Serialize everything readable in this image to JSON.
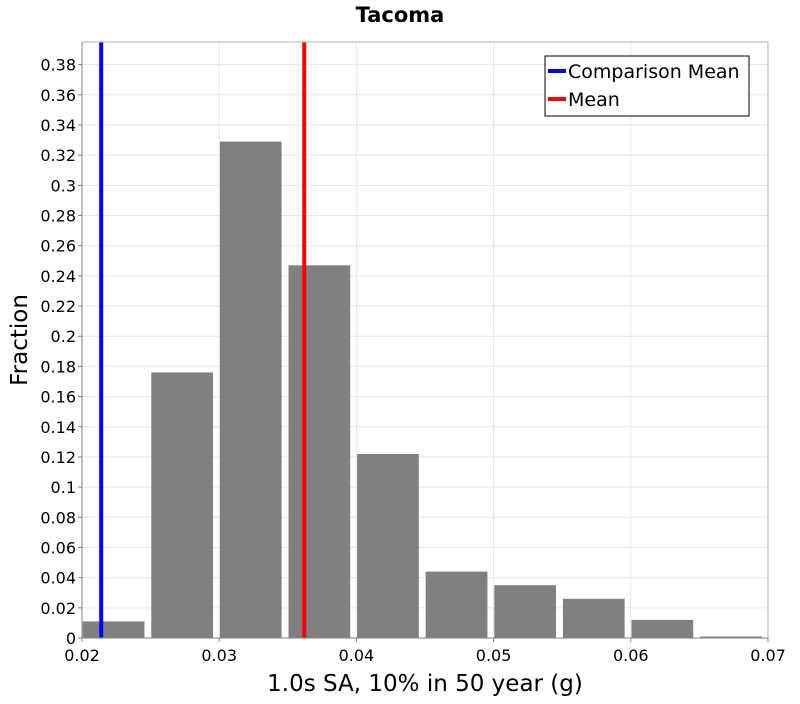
{
  "chart_data": {
    "type": "bar",
    "title": "Tacoma",
    "xlabel": "1.0s SA, 10% in 50 year (g)",
    "ylabel": "Fraction",
    "xlim": [
      0.02,
      0.07
    ],
    "ylim": [
      0,
      0.395
    ],
    "x_ticks": [
      "0.02",
      "0.03",
      "0.04",
      "0.05",
      "0.06",
      "0.07"
    ],
    "y_ticks": [
      "0",
      "0.02",
      "0.04",
      "0.06",
      "0.08",
      "0.1",
      "0.12",
      "0.14",
      "0.16",
      "0.18",
      "0.2",
      "0.22",
      "0.24",
      "0.26",
      "0.28",
      "0.3",
      "0.32",
      "0.34",
      "0.36",
      "0.38"
    ],
    "bars": [
      {
        "x": 0.0223,
        "value": 0.011
      },
      {
        "x": 0.0273,
        "value": 0.176
      },
      {
        "x": 0.0323,
        "value": 0.329
      },
      {
        "x": 0.0373,
        "value": 0.247
      },
      {
        "x": 0.0423,
        "value": 0.122
      },
      {
        "x": 0.0473,
        "value": 0.044
      },
      {
        "x": 0.0523,
        "value": 0.035
      },
      {
        "x": 0.0573,
        "value": 0.026
      },
      {
        "x": 0.0623,
        "value": 0.012
      },
      {
        "x": 0.0673,
        "value": 0.001
      }
    ],
    "bar_width": 0.0045,
    "bar_color": "#808080",
    "grid": true,
    "lines": [
      {
        "name": "Comparison Mean",
        "x": 0.0214,
        "color": "#0000ff"
      },
      {
        "name": "Mean",
        "x": 0.0362,
        "color": "#ff0000"
      }
    ],
    "legend_position": "top-right"
  }
}
